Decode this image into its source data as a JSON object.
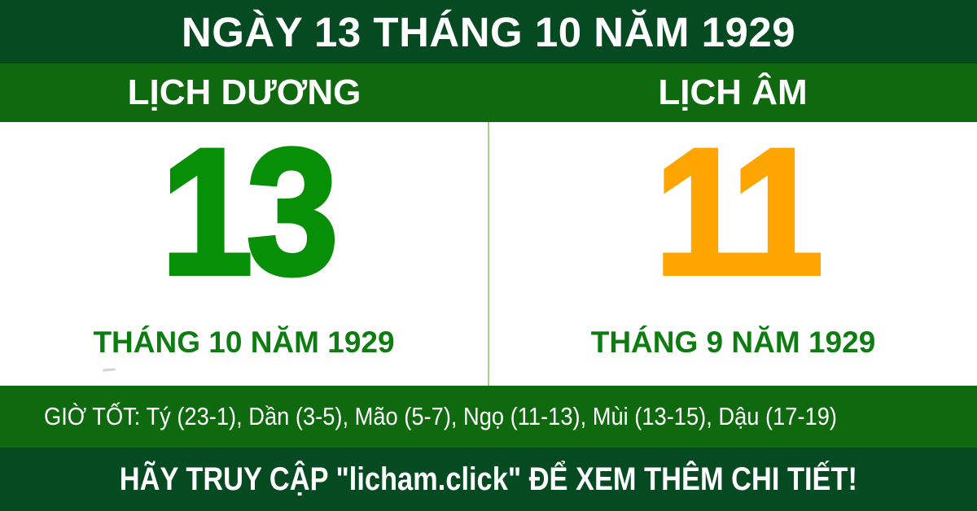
{
  "header": {
    "title": "NGÀY 13 THÁNG 10 NĂM 1929"
  },
  "calendar": {
    "solar": {
      "label": "LỊCH DƯƠNG",
      "day": "13",
      "month_year": "THÁNG 10 NĂM 1929"
    },
    "lunar": {
      "label": "LỊCH ÂM",
      "day": "11",
      "month_year": "THÁNG 9 NĂM 1929"
    }
  },
  "good_hours": {
    "text": "GIỜ TỐT: Tý (23-1), Dần (3-5), Mão (5-7), Ngọ (11-13), Mùi (13-15), Dậu (17-19)"
  },
  "footer": {
    "text": "HÃY TRUY CẬP \"licham.click\" ĐỂ XEM THÊM CHI TIẾT!"
  },
  "colors": {
    "dark_green": "#054a20",
    "mid_green": "#0f6a0f",
    "solar_day_green": "#078f07",
    "month_text_green": "#0d7d12",
    "lunar_day_orange": "#ffa502",
    "divider_light_green": "#a8d18d",
    "text_white": "#ffffff",
    "panel_white": "#ffffff"
  }
}
